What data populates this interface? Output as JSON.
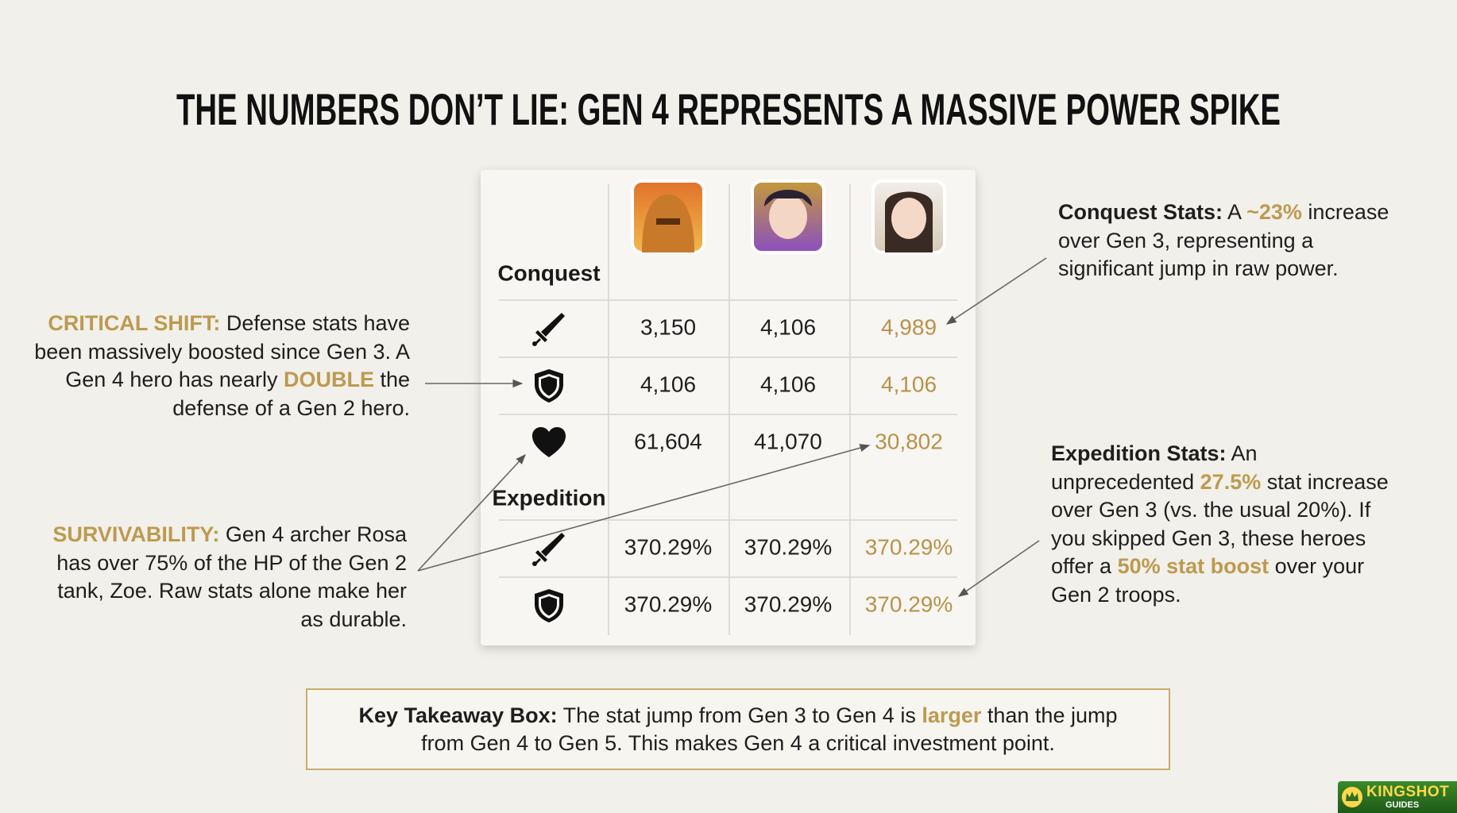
{
  "header": {
    "title": "THE NUMBERS DON’T LIE: GEN 4 REPRESENTS A MASSIVE POWER SPIKE"
  },
  "table": {
    "column_colors": [
      "#1f1f1f",
      "#1f1f1f",
      "#b8924a"
    ],
    "sections": [
      {
        "label": "Conquest",
        "rows": [
          {
            "icon": "sword",
            "cells": [
              "3,150",
              "4,106",
              "4,989"
            ]
          },
          {
            "icon": "shield",
            "cells": [
              "4,106",
              "4,106",
              "4,106"
            ]
          },
          {
            "icon": "heart",
            "cells": [
              "61,604",
              "41,070",
              "30,802"
            ]
          }
        ]
      },
      {
        "label": "Expedition",
        "rows": [
          {
            "icon": "sword",
            "cells": [
              "370.29%",
              "370.29%",
              "370.29%"
            ]
          },
          {
            "icon": "shield",
            "cells": [
              "370.29%",
              "370.29%",
              "370.29%"
            ]
          }
        ]
      }
    ]
  },
  "annotations": [
    {
      "segments": [
        {
          "text": "CRITICAL SHIFT:",
          "style": "gold-bold"
        },
        {
          "text": " Defense stats have been massively boosted since Gen 3. A Gen 4 hero has nearly ",
          "style": "plain"
        },
        {
          "text": "DOUBLE",
          "style": "gold-bold"
        },
        {
          "text": " the defense of a Gen 2 hero.",
          "style": "plain"
        }
      ]
    },
    {
      "segments": [
        {
          "text": "SURVIVABILITY:",
          "style": "gold-bold"
        },
        {
          "text": " Gen 4 archer Rosa has over 75% of the HP of the Gen 2 tank, Zoe. Raw stats alone make her as durable.",
          "style": "plain"
        }
      ]
    },
    {
      "segments": [
        {
          "text": "Conquest Stats:",
          "style": "bold"
        },
        {
          "text": " A ",
          "style": "plain"
        },
        {
          "text": "~23%",
          "style": "gold-bold"
        },
        {
          "text": " increase over Gen 3, representing a significant jump in raw power.",
          "style": "plain"
        }
      ]
    },
    {
      "segments": [
        {
          "text": "Expedition Stats:",
          "style": "bold"
        },
        {
          "text": " An unprecedented ",
          "style": "plain"
        },
        {
          "text": "27.5%",
          "style": "gold-bold"
        },
        {
          "text": " stat increase over Gen 3 (vs. the usual 20%). If you skipped Gen 3, these heroes offer a ",
          "style": "plain"
        },
        {
          "text": "50% stat boost",
          "style": "gold-bold"
        },
        {
          "text": " over your Gen 2 troops.",
          "style": "plain"
        }
      ]
    }
  ],
  "takeaway": {
    "segments": [
      {
        "text": "Key Takeaway Box:",
        "style": "bold"
      },
      {
        "text": " The stat jump from Gen 3 to Gen 4 is ",
        "style": "plain"
      },
      {
        "text": "larger",
        "style": "gold-bold"
      },
      {
        "text": " than the jump from Gen 4 to Gen 5. This makes Gen 4 a critical investment point.",
        "style": "plain"
      }
    ]
  },
  "logo": {
    "title": "KINGSHOT",
    "subtitle": "GUIDES"
  }
}
